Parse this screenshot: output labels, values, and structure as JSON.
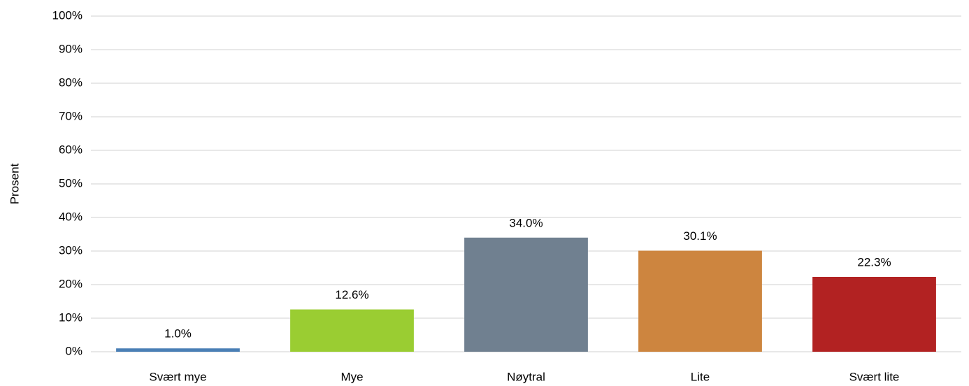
{
  "chart_data": {
    "type": "bar",
    "y_label": "Prosent",
    "categories": [
      "Svært mye",
      "Mye",
      "Nøytral",
      "Lite",
      "Svært lite"
    ],
    "values": [
      1.0,
      12.6,
      34.0,
      30.1,
      22.3
    ],
    "value_labels": [
      "1.0%",
      "12.6%",
      "34.0%",
      "30.1%",
      "22.3%"
    ],
    "colors": [
      "#4a7fb5",
      "#9acd32",
      "#708090",
      "#cd853f",
      "#b22222"
    ],
    "ylim": [
      0,
      100
    ],
    "yticks": [
      {
        "value": 0,
        "label": "0%"
      },
      {
        "value": 10,
        "label": "10%"
      },
      {
        "value": 20,
        "label": "20%"
      },
      {
        "value": 30,
        "label": "30%"
      },
      {
        "value": 40,
        "label": "40%"
      },
      {
        "value": 50,
        "label": "50%"
      },
      {
        "value": 60,
        "label": "60%"
      },
      {
        "value": 70,
        "label": "70%"
      },
      {
        "value": 80,
        "label": "80%"
      },
      {
        "value": 90,
        "label": "90%"
      },
      {
        "value": 100,
        "label": "100%"
      }
    ],
    "grid": true
  }
}
